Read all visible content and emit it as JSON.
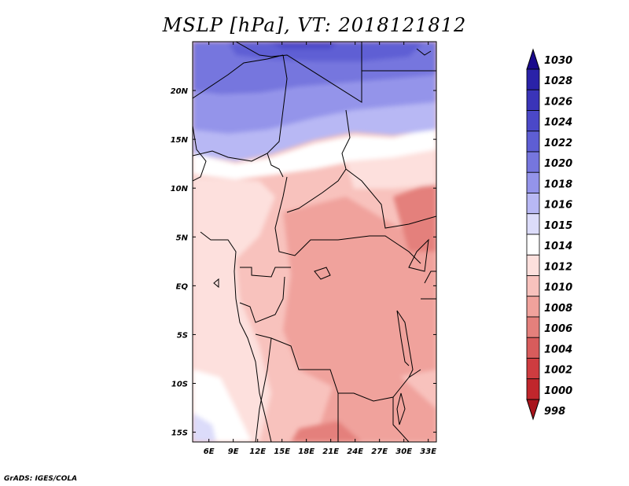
{
  "title": "MSLP [hPa], VT: 2018121812",
  "credit": "GrADS: IGES/COLA",
  "map": {
    "lon_range": [
      4,
      34
    ],
    "lat_range": [
      -16,
      25
    ],
    "lon_ticks": [
      {
        "value": 6,
        "label": "6E"
      },
      {
        "value": 9,
        "label": "9E"
      },
      {
        "value": 12,
        "label": "12E"
      },
      {
        "value": 15,
        "label": "15E"
      },
      {
        "value": 18,
        "label": "18E"
      },
      {
        "value": 21,
        "label": "21E"
      },
      {
        "value": 24,
        "label": "24E"
      },
      {
        "value": 27,
        "label": "27E"
      },
      {
        "value": 30,
        "label": "30E"
      },
      {
        "value": 33,
        "label": "33E"
      }
    ],
    "lat_ticks": [
      {
        "value": 20,
        "label": "20N"
      },
      {
        "value": 15,
        "label": "15N"
      },
      {
        "value": 10,
        "label": "10N"
      },
      {
        "value": 5,
        "label": "5N"
      },
      {
        "value": 0,
        "label": "EQ"
      },
      {
        "value": -5,
        "label": "5S"
      },
      {
        "value": -10,
        "label": "10S"
      },
      {
        "value": -15,
        "label": "15S"
      }
    ]
  },
  "colorbar": {
    "levels": [
      {
        "label": "1030",
        "color": "#1a0a8c"
      },
      {
        "label": "1028",
        "color": "#2a22a8"
      },
      {
        "label": "1026",
        "color": "#3a34b8"
      },
      {
        "label": "1024",
        "color": "#4b48c8"
      },
      {
        "label": "1022",
        "color": "#5e5ed4"
      },
      {
        "label": "1020",
        "color": "#7676de"
      },
      {
        "label": "1018",
        "color": "#9494ea"
      },
      {
        "label": "1016",
        "color": "#b8b8f4"
      },
      {
        "label": "1015",
        "color": "#dcdcfa"
      },
      {
        "label": "1014",
        "color": "#ffffff"
      },
      {
        "label": "1012",
        "color": "#fde0dd"
      },
      {
        "label": "1010",
        "color": "#f8c2bd"
      },
      {
        "label": "1008",
        "color": "#f0a29c"
      },
      {
        "label": "1006",
        "color": "#e4807c"
      },
      {
        "label": "1004",
        "color": "#d85c5c"
      },
      {
        "label": "1002",
        "color": "#ce3c40"
      },
      {
        "label": "1000",
        "color": "#c0262c"
      },
      {
        "label": "998",
        "color": "#a8141c"
      }
    ]
  }
}
